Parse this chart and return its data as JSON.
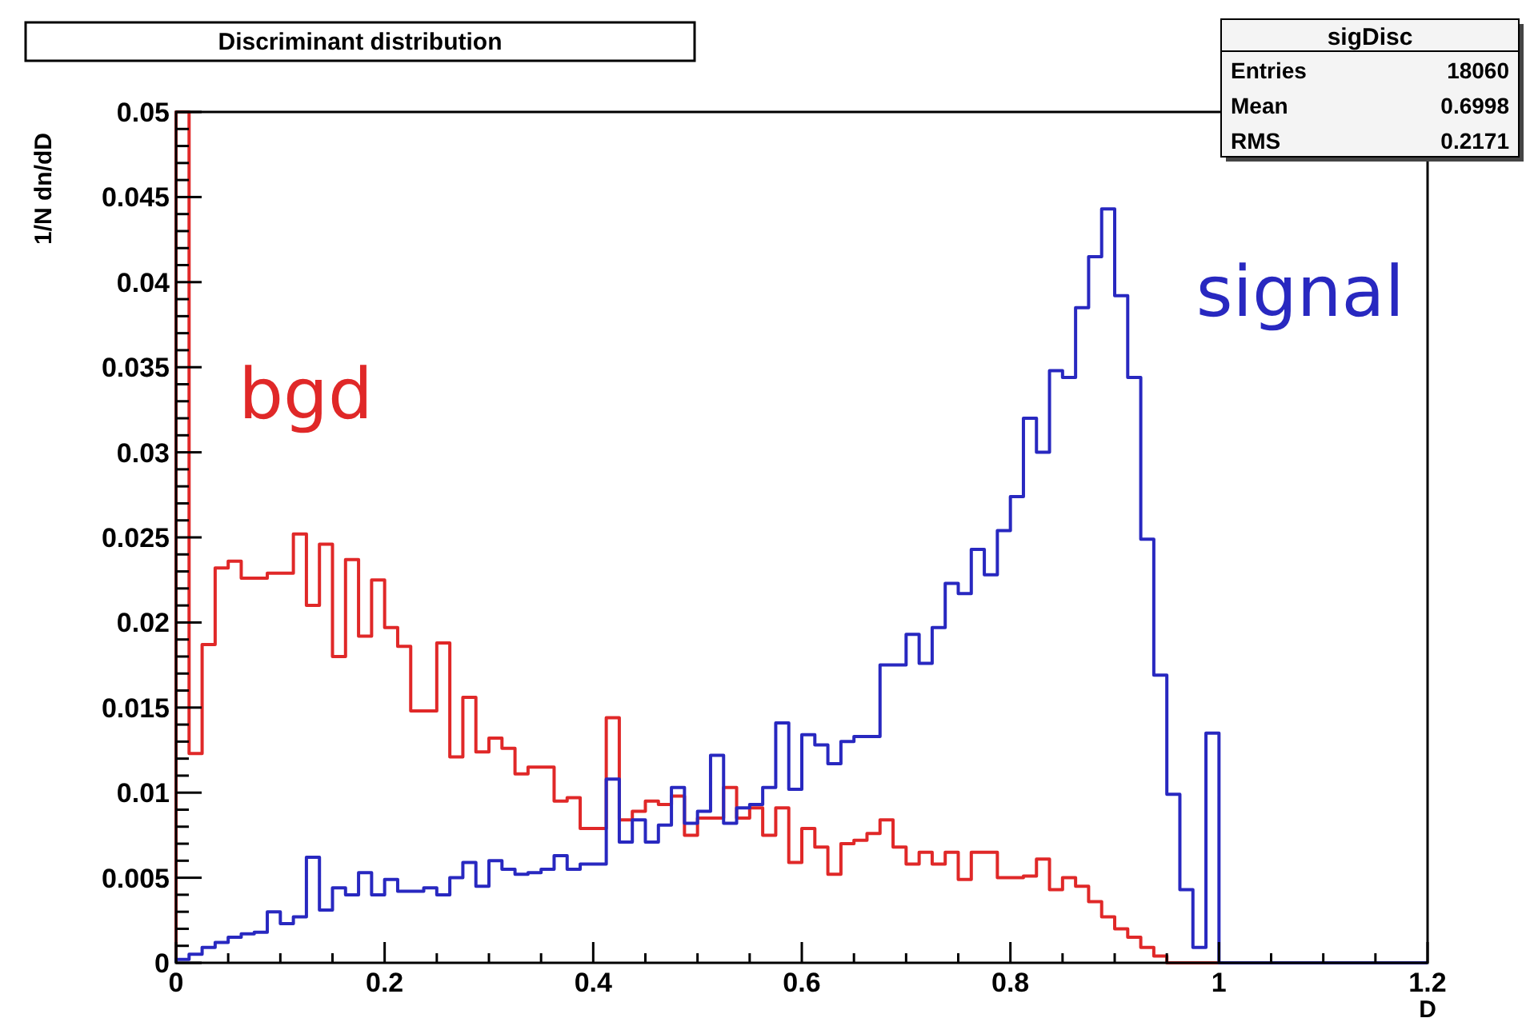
{
  "chart_data": {
    "type": "histogram",
    "title": "Discriminant distribution",
    "xlabel": "D",
    "ylabel": "1/N dn/dD",
    "bins": [
      0,
      0.0125,
      0.025,
      0.0375,
      0.05,
      0.0625,
      0.075,
      0.0875,
      0.1,
      0.1125,
      0.125,
      0.1375,
      0.15,
      0.1625,
      0.175,
      0.1875,
      0.2,
      0.2125,
      0.225,
      0.2375,
      0.25,
      0.2625,
      0.275,
      0.2875,
      0.3,
      0.3125,
      0.325,
      0.3375,
      0.35,
      0.3625,
      0.375,
      0.3875,
      0.4,
      0.4125,
      0.425,
      0.4375,
      0.45,
      0.4625,
      0.475,
      0.4875,
      0.5,
      0.5125,
      0.525,
      0.5375,
      0.55,
      0.5625,
      0.575,
      0.5875,
      0.6,
      0.6125,
      0.625,
      0.6375,
      0.65,
      0.6625,
      0.675,
      0.6875,
      0.7,
      0.7125,
      0.725,
      0.7375,
      0.75,
      0.7625,
      0.775,
      0.7875,
      0.8,
      0.8125,
      0.825,
      0.8375,
      0.85,
      0.8625,
      0.875,
      0.8875,
      0.9,
      0.9125,
      0.925,
      0.9375,
      0.95,
      0.9625,
      0.975,
      0.9875,
      1,
      1.0125,
      1.025,
      1.0375,
      1.05,
      1.0625,
      1.075,
      1.0875,
      1.1,
      1.1125,
      1.125,
      1.1375,
      1.15,
      1.1625,
      1.175,
      1.1875,
      1.2
    ],
    "series": [
      {
        "name": "bgd",
        "color": "#e02828",
        "values": [
          0.05,
          0.0123,
          0.0187,
          0.0232,
          0.0236,
          0.0226,
          0.0226,
          0.0229,
          0.0229,
          0.0252,
          0.021,
          0.0246,
          0.018,
          0.0237,
          0.0192,
          0.0225,
          0.0197,
          0.0186,
          0.0148,
          0.0148,
          0.0188,
          0.0121,
          0.0156,
          0.0124,
          0.0132,
          0.0126,
          0.0111,
          0.0115,
          0.0115,
          0.0095,
          0.0097,
          0.0079,
          0.0079,
          0.0144,
          0.0084,
          0.0089,
          0.0095,
          0.0093,
          0.0098,
          0.0075,
          0.0085,
          0.0085,
          0.0103,
          0.0085,
          0.0091,
          0.0075,
          0.0091,
          0.0059,
          0.0079,
          0.0068,
          0.0052,
          0.007,
          0.0072,
          0.0076,
          0.0084,
          0.0068,
          0.0058,
          0.0065,
          0.0058,
          0.0065,
          0.0049,
          0.0065,
          0.0065,
          0.005,
          0.005,
          0.0051,
          0.0061,
          0.0043,
          0.005,
          0.0045,
          0.0036,
          0.0027,
          0.002,
          0.0015,
          0.0009,
          0.0004,
          0,
          0,
          0,
          0,
          0,
          0,
          0,
          0,
          0,
          0,
          0,
          0,
          0,
          0,
          0,
          0,
          0,
          0,
          0,
          0
        ]
      },
      {
        "name": "signal",
        "color": "#2828c0",
        "values": [
          0.0002,
          0.0005,
          0.0009,
          0.0012,
          0.0015,
          0.0017,
          0.0018,
          0.003,
          0.0023,
          0.0027,
          0.0062,
          0.0031,
          0.0044,
          0.004,
          0.0053,
          0.004,
          0.0049,
          0.0042,
          0.0042,
          0.0044,
          0.004,
          0.005,
          0.0059,
          0.0045,
          0.006,
          0.0055,
          0.0052,
          0.0053,
          0.0055,
          0.0063,
          0.0055,
          0.0058,
          0.0058,
          0.0108,
          0.0071,
          0.0084,
          0.0071,
          0.0081,
          0.0103,
          0.0082,
          0.0089,
          0.0122,
          0.0082,
          0.0091,
          0.0093,
          0.0103,
          0.0141,
          0.0102,
          0.0134,
          0.0128,
          0.0117,
          0.013,
          0.0133,
          0.0133,
          0.0175,
          0.0175,
          0.0193,
          0.0176,
          0.0197,
          0.0223,
          0.0217,
          0.0243,
          0.0228,
          0.0254,
          0.0274,
          0.032,
          0.03,
          0.0348,
          0.0344,
          0.0385,
          0.0415,
          0.0443,
          0.0392,
          0.0344,
          0.0249,
          0.0169,
          0.0099,
          0.0043,
          0.0009,
          0.0135,
          0,
          0,
          0,
          0,
          0,
          0,
          0,
          0,
          0,
          0,
          0,
          0,
          0,
          0,
          0,
          0
        ]
      }
    ],
    "xlim": [
      0,
      1.2
    ],
    "ylim": [
      0,
      0.05
    ],
    "xticks": [
      0,
      {
        "value": 0.05,
        "label": null
      },
      {
        "value": 0.1,
        "label": null
      },
      {
        "value": 0.15,
        "label": null
      },
      0.2,
      {
        "value": 0.25,
        "label": null
      },
      {
        "value": 0.3,
        "label": null
      },
      {
        "value": 0.35,
        "label": null
      },
      0.4,
      {
        "value": 0.45,
        "label": null
      },
      {
        "value": 0.5,
        "label": null
      },
      {
        "value": 0.55,
        "label": null
      },
      0.6,
      {
        "value": 0.65,
        "label": null
      },
      {
        "value": 0.7,
        "label": null
      },
      {
        "value": 0.75,
        "label": null
      },
      0.8,
      {
        "value": 0.85,
        "label": null
      },
      {
        "value": 0.9,
        "label": null
      },
      {
        "value": 0.95,
        "label": null
      },
      1,
      {
        "value": 1.05,
        "label": null
      },
      {
        "value": 1.1,
        "label": null
      },
      {
        "value": 1.15,
        "label": null
      },
      1.2
    ],
    "yticks": [
      0,
      {
        "value": 0.001,
        "label": null
      },
      {
        "value": 0.002,
        "label": null
      },
      {
        "value": 0.003,
        "label": null
      },
      {
        "value": 0.004,
        "label": null
      },
      0.005,
      {
        "value": 0.006,
        "label": null
      },
      {
        "value": 0.007,
        "label": null
      },
      {
        "value": 0.008,
        "label": null
      },
      {
        "value": 0.009,
        "label": null
      },
      0.01,
      {
        "value": 0.011,
        "label": null
      },
      {
        "value": 0.012,
        "label": null
      },
      {
        "value": 0.013,
        "label": null
      },
      {
        "value": 0.014,
        "label": null
      },
      0.015,
      {
        "value": 0.016,
        "label": null
      },
      {
        "value": 0.017,
        "label": null
      },
      {
        "value": 0.018,
        "label": null
      },
      {
        "value": 0.019,
        "label": null
      },
      0.02,
      {
        "value": 0.021,
        "label": null
      },
      {
        "value": 0.022,
        "label": null
      },
      {
        "value": 0.023,
        "label": null
      },
      {
        "value": 0.024,
        "label": null
      },
      0.025,
      {
        "value": 0.026,
        "label": null
      },
      {
        "value": 0.027,
        "label": null
      },
      {
        "value": 0.028,
        "label": null
      },
      {
        "value": 0.029,
        "label": null
      },
      0.03,
      {
        "value": 0.031,
        "label": null
      },
      {
        "value": 0.032,
        "label": null
      },
      {
        "value": 0.033,
        "label": null
      },
      {
        "value": 0.034,
        "label": null
      },
      0.035,
      {
        "value": 0.036,
        "label": null
      },
      {
        "value": 0.037,
        "label": null
      },
      {
        "value": 0.038,
        "label": null
      },
      {
        "value": 0.039,
        "label": null
      },
      0.04,
      {
        "value": 0.041,
        "label": null
      },
      {
        "value": 0.042,
        "label": null
      },
      {
        "value": 0.043,
        "label": null
      },
      {
        "value": 0.044,
        "label": null
      },
      0.045,
      {
        "value": 0.046,
        "label": null
      },
      {
        "value": 0.047,
        "label": null
      },
      {
        "value": 0.048,
        "label": null
      },
      {
        "value": 0.049,
        "label": null
      },
      0.05
    ],
    "annotations": [
      "sigDisc",
      "Entries",
      "18060",
      "Mean",
      "0.6998",
      "RMS",
      "0.2171"
    ]
  }
}
